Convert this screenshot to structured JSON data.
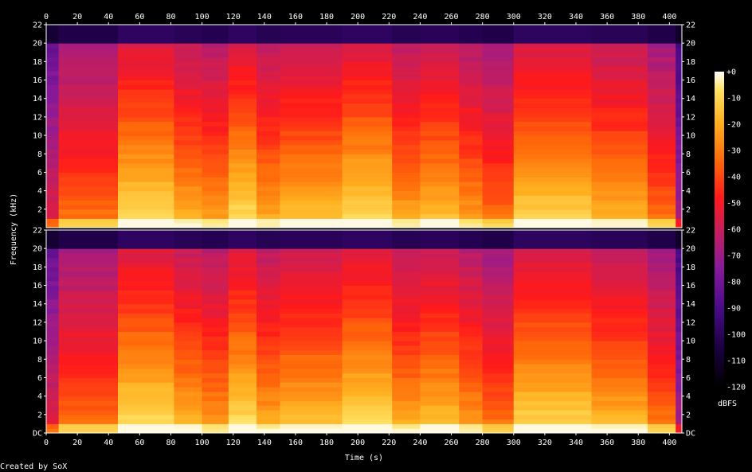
{
  "chart_data": {
    "type": "heatmap",
    "title": "",
    "xlabel": "Time (s)",
    "ylabel": "Frequency (kHz)",
    "colorbar_label": "dBFS",
    "x_ticks": [
      0,
      20,
      40,
      60,
      80,
      100,
      120,
      140,
      160,
      180,
      200,
      220,
      240,
      260,
      280,
      300,
      320,
      340,
      360,
      380,
      400
    ],
    "xlim": [
      0,
      408
    ],
    "y_ticks": [
      "DC",
      "2",
      "4",
      "6",
      "8",
      "10",
      "12",
      "14",
      "16",
      "18",
      "20",
      "22"
    ],
    "ylim_khz": [
      0,
      22
    ],
    "colorbar_ticks": [
      "+0",
      "-10",
      "-20",
      "-30",
      "-40",
      "-50",
      "-60",
      "-70",
      "-80",
      "-90",
      "-100",
      "-110",
      "-120"
    ],
    "colorbar_range_dbfs": [
      -120,
      0
    ],
    "channels": 2,
    "cutoff_khz": 20,
    "segments": [
      {
        "start": 0,
        "end": 8,
        "level": 0.45
      },
      {
        "start": 8,
        "end": 46,
        "level": 0.62
      },
      {
        "start": 46,
        "end": 82,
        "level": 0.8
      },
      {
        "start": 82,
        "end": 100,
        "level": 0.72
      },
      {
        "start": 100,
        "end": 117,
        "level": 0.68
      },
      {
        "start": 117,
        "end": 135,
        "level": 0.8
      },
      {
        "start": 135,
        "end": 150,
        "level": 0.7
      },
      {
        "start": 150,
        "end": 190,
        "level": 0.74
      },
      {
        "start": 190,
        "end": 222,
        "level": 0.8
      },
      {
        "start": 222,
        "end": 240,
        "level": 0.7
      },
      {
        "start": 240,
        "end": 265,
        "level": 0.74
      },
      {
        "start": 265,
        "end": 280,
        "level": 0.68
      },
      {
        "start": 280,
        "end": 300,
        "level": 0.62
      },
      {
        "start": 300,
        "end": 350,
        "level": 0.78
      },
      {
        "start": 350,
        "end": 386,
        "level": 0.72
      },
      {
        "start": 386,
        "end": 404,
        "level": 0.62
      },
      {
        "start": 404,
        "end": 408,
        "level": 0.35
      }
    ],
    "colormap": [
      "#000000",
      "#1a0040",
      "#4a0a8a",
      "#8a1a9a",
      "#c81e5a",
      "#ff1a1a",
      "#ff6a0a",
      "#ffb020",
      "#ffe060",
      "#ffffff"
    ]
  },
  "credit": "Created by SoX"
}
